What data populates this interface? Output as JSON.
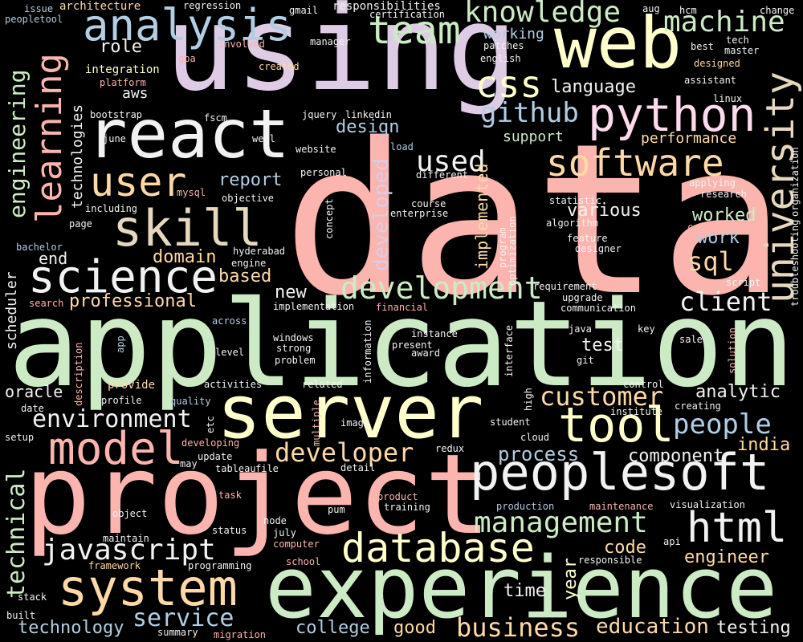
{
  "colors": {
    "background": "#000000",
    "pink": "#fbb4ae",
    "blue": "#b3cde3",
    "green": "#ccebc5",
    "lavender": "#decbe4",
    "orange": "#fed9a6",
    "yellow": "#ffffcc",
    "tan": "#e5d8bd",
    "rose": "#fddaec",
    "grey": "#f2f2f2"
  },
  "words": [
    {
      "text": "data",
      "color": "pink"
    },
    {
      "text": "application",
      "color": "green"
    },
    {
      "text": "using",
      "color": "lavender"
    },
    {
      "text": "project",
      "color": "pink"
    },
    {
      "text": "experience",
      "color": "green"
    },
    {
      "text": "server",
      "color": "yellow"
    },
    {
      "text": "web",
      "color": "yellow"
    },
    {
      "text": "react",
      "color": "grey"
    },
    {
      "text": "peoplesoft",
      "color": "grey"
    },
    {
      "text": "system",
      "color": "orange"
    },
    {
      "text": "database",
      "color": "yellow"
    },
    {
      "text": "python",
      "color": "rose"
    },
    {
      "text": "analysis",
      "color": "blue"
    },
    {
      "text": "skill",
      "color": "tan"
    },
    {
      "text": "science",
      "color": "grey"
    },
    {
      "text": "software",
      "color": "orange"
    },
    {
      "text": "university",
      "color": "tan"
    },
    {
      "text": "learning",
      "color": "pink"
    },
    {
      "text": "model",
      "color": "pink"
    },
    {
      "text": "tool",
      "color": "yellow"
    },
    {
      "text": "html",
      "color": "grey"
    },
    {
      "text": "user",
      "color": "orange"
    },
    {
      "text": "team",
      "color": "green"
    },
    {
      "text": "javascript",
      "color": "grey"
    },
    {
      "text": "development",
      "color": "green"
    },
    {
      "text": "management",
      "color": "green"
    },
    {
      "text": "css",
      "color": "yellow"
    },
    {
      "text": "knowledge",
      "color": "green"
    },
    {
      "text": "machine",
      "color": "green"
    },
    {
      "text": "customer",
      "color": "orange"
    },
    {
      "text": "environment",
      "color": "grey"
    },
    {
      "text": "developer",
      "color": "orange"
    },
    {
      "text": "service",
      "color": "blue"
    },
    {
      "text": "people",
      "color": "blue"
    },
    {
      "text": "business",
      "color": "orange"
    },
    {
      "text": "education",
      "color": "orange"
    },
    {
      "text": "github",
      "color": "blue"
    },
    {
      "text": "engineering",
      "color": "green"
    },
    {
      "text": "technical",
      "color": "green"
    },
    {
      "text": "client",
      "color": "grey"
    },
    {
      "text": "sql",
      "color": "orange"
    },
    {
      "text": "used",
      "color": "grey"
    },
    {
      "text": "developed",
      "color": "lavender"
    },
    {
      "text": "implemented",
      "color": "orange"
    },
    {
      "text": "technology",
      "color": "blue"
    },
    {
      "text": "testing",
      "color": "grey"
    },
    {
      "text": "process",
      "color": "blue"
    },
    {
      "text": "component",
      "color": "grey"
    },
    {
      "text": "analytic",
      "color": "grey"
    },
    {
      "text": "engineer",
      "color": "orange"
    },
    {
      "text": "code",
      "color": "orange"
    },
    {
      "text": "india",
      "color": "orange"
    },
    {
      "text": "year",
      "color": "yellow"
    },
    {
      "text": "good",
      "color": "orange"
    },
    {
      "text": "college",
      "color": "blue"
    },
    {
      "text": "time",
      "color": "grey"
    },
    {
      "text": "domain",
      "color": "orange"
    },
    {
      "text": "professional",
      "color": "orange"
    },
    {
      "text": "based",
      "color": "orange"
    },
    {
      "text": "new",
      "color": "grey"
    },
    {
      "text": "report",
      "color": "blue"
    },
    {
      "text": "design",
      "color": "blue"
    },
    {
      "text": "various",
      "color": "grey"
    },
    {
      "text": "worked",
      "color": "green"
    },
    {
      "text": "work",
      "color": "blue"
    },
    {
      "text": "language",
      "color": "grey"
    },
    {
      "text": "working",
      "color": "blue"
    },
    {
      "text": "support",
      "color": "green"
    },
    {
      "text": "performance",
      "color": "orange"
    },
    {
      "text": "role",
      "color": "grey"
    },
    {
      "text": "end",
      "color": "grey"
    },
    {
      "text": "test",
      "color": "grey"
    },
    {
      "text": "scheduler",
      "color": "grey"
    },
    {
      "text": "oracle",
      "color": "grey"
    },
    {
      "text": "technologies",
      "color": "grey"
    },
    {
      "text": "aws",
      "color": "grey"
    },
    {
      "text": "architecture",
      "color": "orange"
    },
    {
      "text": "issue",
      "color": "blue"
    },
    {
      "text": "peopletool",
      "color": "blue"
    },
    {
      "text": "integration",
      "color": "yellow"
    },
    {
      "text": "platform",
      "color": "pink"
    },
    {
      "text": "bootstrap",
      "color": "grey"
    },
    {
      "text": "june",
      "color": "grey"
    },
    {
      "text": "including",
      "color": "grey"
    },
    {
      "text": "page",
      "color": "grey"
    },
    {
      "text": "bachelor",
      "color": "blue"
    },
    {
      "text": "search",
      "color": "pink"
    },
    {
      "text": "mysql",
      "color": "pink"
    },
    {
      "text": "objective",
      "color": "grey"
    },
    {
      "text": "fscm",
      "color": "grey"
    },
    {
      "text": "jquery",
      "color": "grey"
    },
    {
      "text": "linkedin",
      "color": "grey"
    },
    {
      "text": "well",
      "color": "grey"
    },
    {
      "text": "website",
      "color": "grey"
    },
    {
      "text": "load",
      "color": "blue"
    },
    {
      "text": "personal",
      "color": "grey"
    },
    {
      "text": "different",
      "color": "grey"
    },
    {
      "text": "course",
      "color": "grey"
    },
    {
      "text": "enterprise",
      "color": "grey"
    },
    {
      "text": "concept",
      "color": "grey"
    },
    {
      "text": "hyderabad",
      "color": "grey"
    },
    {
      "text": "engine",
      "color": "grey"
    },
    {
      "text": "regression",
      "color": "grey"
    },
    {
      "text": "gmail",
      "color": "grey"
    },
    {
      "text": "responsibilities",
      "color": "grey"
    },
    {
      "text": "certification",
      "color": "grey"
    },
    {
      "text": "aug",
      "color": "grey"
    },
    {
      "text": "hcm",
      "color": "grey"
    },
    {
      "text": "change",
      "color": "grey"
    },
    {
      "text": "tech",
      "color": "grey"
    },
    {
      "text": "master",
      "color": "grey"
    },
    {
      "text": "best",
      "color": "grey"
    },
    {
      "text": "designed",
      "color": "orange"
    },
    {
      "text": "assistant",
      "color": "grey"
    },
    {
      "text": "involved",
      "color": "pink"
    },
    {
      "text": "manager",
      "color": "grey"
    },
    {
      "text": "patches",
      "color": "grey"
    },
    {
      "text": "english",
      "color": "grey"
    },
    {
      "text": "gpa",
      "color": "pink"
    },
    {
      "text": "created",
      "color": "orange"
    },
    {
      "text": "linux",
      "color": "grey"
    },
    {
      "text": "applying",
      "color": "grey"
    },
    {
      "text": "research",
      "color": "grey"
    },
    {
      "text": "organization",
      "color": "grey"
    },
    {
      "text": "statistic",
      "color": "grey"
    },
    {
      "text": "algorithm",
      "color": "grey"
    },
    {
      "text": "company",
      "color": "pink"
    },
    {
      "text": "feature",
      "color": "grey"
    },
    {
      "text": "designer",
      "color": "grey"
    },
    {
      "text": "program",
      "color": "grey"
    },
    {
      "text": "optimization",
      "color": "grey"
    },
    {
      "text": "troubleshooting",
      "color": "grey"
    },
    {
      "text": "script",
      "color": "grey"
    },
    {
      "text": "requirement",
      "color": "grey"
    },
    {
      "text": "upgrade",
      "color": "grey"
    },
    {
      "text": "communication",
      "color": "grey"
    },
    {
      "text": "implementation",
      "color": "grey"
    },
    {
      "text": "financial",
      "color": "pink"
    },
    {
      "text": "across",
      "color": "blue"
    },
    {
      "text": "windows",
      "color": "grey"
    },
    {
      "text": "strong",
      "color": "grey"
    },
    {
      "text": "problem",
      "color": "grey"
    },
    {
      "text": "level",
      "color": "grey"
    },
    {
      "text": "information",
      "color": "grey"
    },
    {
      "text": "instance",
      "color": "grey"
    },
    {
      "text": "present",
      "color": "grey"
    },
    {
      "text": "award",
      "color": "grey"
    },
    {
      "text": "interface",
      "color": "grey"
    },
    {
      "text": "java",
      "color": "grey"
    },
    {
      "text": "git",
      "color": "grey"
    },
    {
      "text": "key",
      "color": "grey"
    },
    {
      "text": "sale",
      "color": "grey"
    },
    {
      "text": "solution",
      "color": "pink"
    },
    {
      "text": "app",
      "color": "blue"
    },
    {
      "text": "description",
      "color": "pink"
    },
    {
      "text": "provide",
      "color": "orange"
    },
    {
      "text": "profile",
      "color": "grey"
    },
    {
      "text": "activities",
      "color": "grey"
    },
    {
      "text": "quality",
      "color": "blue"
    },
    {
      "text": "related",
      "color": "grey"
    },
    {
      "text": "control",
      "color": "grey"
    },
    {
      "text": "institute",
      "color": "grey"
    },
    {
      "text": "creating",
      "color": "grey"
    },
    {
      "text": "high",
      "color": "grey"
    },
    {
      "text": "date",
      "color": "grey"
    },
    {
      "text": "setup",
      "color": "grey"
    },
    {
      "text": "etc",
      "color": "grey"
    },
    {
      "text": "multiple",
      "color": "pink"
    },
    {
      "text": "image",
      "color": "grey"
    },
    {
      "text": "student",
      "color": "grey"
    },
    {
      "text": "cloud",
      "color": "grey"
    },
    {
      "text": "developing",
      "color": "pink"
    },
    {
      "text": "update",
      "color": "grey"
    },
    {
      "text": "may",
      "color": "grey"
    },
    {
      "text": "tableau",
      "color": "grey"
    },
    {
      "text": "file",
      "color": "grey"
    },
    {
      "text": "detail",
      "color": "grey"
    },
    {
      "text": "redux",
      "color": "grey"
    },
    {
      "text": "task",
      "color": "pink"
    },
    {
      "text": "product",
      "color": "pink"
    },
    {
      "text": "training",
      "color": "grey"
    },
    {
      "text": "production",
      "color": "blue"
    },
    {
      "text": "maintenance",
      "color": "pink"
    },
    {
      "text": "visualization",
      "color": "grey"
    },
    {
      "text": "object",
      "color": "grey"
    },
    {
      "text": "pum",
      "color": "grey"
    },
    {
      "text": "node",
      "color": "grey"
    },
    {
      "text": "maintain",
      "color": "grey"
    },
    {
      "text": "status",
      "color": "grey"
    },
    {
      "text": "july",
      "color": "grey"
    },
    {
      "text": "computer",
      "color": "pink"
    },
    {
      "text": "api",
      "color": "grey"
    },
    {
      "text": "framework",
      "color": "orange"
    },
    {
      "text": "programming",
      "color": "grey"
    },
    {
      "text": "school",
      "color": "pink"
    },
    {
      "text": "responsible",
      "color": "grey"
    },
    {
      "text": "stack",
      "color": "grey"
    },
    {
      "text": "built",
      "color": "grey"
    },
    {
      "text": "summary",
      "color": "grey"
    },
    {
      "text": "migration",
      "color": "pink"
    }
  ]
}
